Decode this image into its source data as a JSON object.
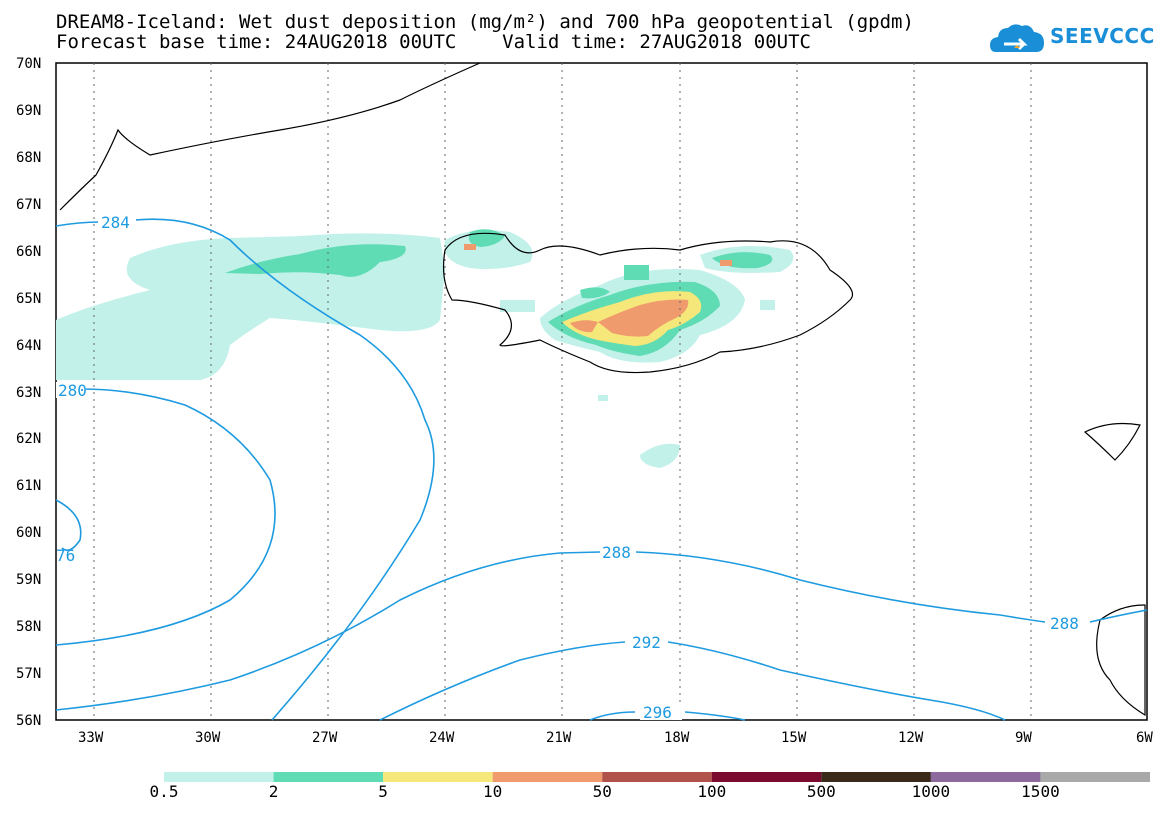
{
  "title": "DREAM8-Iceland: Wet dust deposition (mg/m²) and 700 hPa geopotential (gpdm)",
  "subtitle_base": "Forecast base time: 24AUG2018 00UTC",
  "subtitle_valid": "Valid time: 27AUG2018 00UTC",
  "logo_text": "SEEVCCC",
  "logo_icon": "cloud-icon",
  "map": {
    "lon_range": [
      -34,
      -6
    ],
    "lat_range": [
      56,
      70
    ],
    "lon_ticks": [
      "33W",
      "30W",
      "27W",
      "24W",
      "21W",
      "18W",
      "15W",
      "12W",
      "9W",
      "6W"
    ],
    "lat_ticks": [
      "70N",
      "69N",
      "68N",
      "67N",
      "66N",
      "65N",
      "64N",
      "63N",
      "62N",
      "61N",
      "60N",
      "59N",
      "58N",
      "57N",
      "56N"
    ],
    "contour_color": "#1e9be0",
    "contour_labels": [
      "284",
      "280",
      "76",
      "288",
      "292",
      "296",
      "288"
    ]
  },
  "legend": {
    "labels": [
      "0.5",
      "2",
      "5",
      "10",
      "50",
      "100",
      "500",
      "1000",
      "1500"
    ],
    "colors": [
      "#c2f1ea",
      "#5fdcb4",
      "#f6e77a",
      "#f09b6e",
      "#b2534b",
      "#7a0a2e",
      "#3a2a1a",
      "#8d6a9e",
      "#a9a9a9"
    ]
  }
}
